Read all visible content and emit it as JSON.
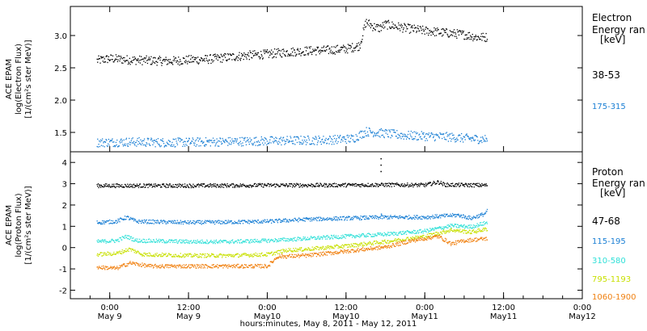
{
  "chart_data": [
    {
      "type": "scatter",
      "panel": "electron",
      "ylabel_lines": [
        "ACE EPAM",
        "log(Electron Flux)",
        "[1/(cm²s ster MeV)]"
      ],
      "ylim": [
        1.2,
        3.45
      ],
      "yticks": [
        1.5,
        2.0,
        2.5,
        3.0
      ],
      "ytick_labels": [
        "1.5",
        "2.0",
        "2.5",
        "3.0"
      ],
      "legend_title": [
        "Electron",
        "Energy ran",
        "[keV]"
      ],
      "series": [
        {
          "name": "38-53",
          "color": "#000000",
          "points": [
            [
              -4,
              2.62
            ],
            [
              0,
              2.65
            ],
            [
              6,
              2.63
            ],
            [
              12,
              2.62
            ],
            [
              18,
              2.61
            ],
            [
              24,
              2.63
            ],
            [
              30,
              2.64
            ],
            [
              36,
              2.67
            ],
            [
              42,
              2.7
            ],
            [
              48,
              2.72
            ],
            [
              54,
              2.75
            ],
            [
              60,
              2.77
            ],
            [
              66,
              2.78
            ],
            [
              72,
              2.8
            ],
            [
              76,
              2.85
            ],
            [
              78,
              3.22
            ],
            [
              80,
              3.15
            ],
            [
              82,
              3.12
            ],
            [
              84,
              3.18
            ],
            [
              90,
              3.12
            ],
            [
              96,
              3.08
            ],
            [
              102,
              3.05
            ],
            [
              108,
              3.02
            ],
            [
              112,
              2.98
            ],
            [
              115,
              2.98
            ]
          ]
        },
        {
          "name": "175-315",
          "color": "#1a7fd4",
          "points": [
            [
              -4,
              1.35
            ],
            [
              6,
              1.36
            ],
            [
              18,
              1.35
            ],
            [
              30,
              1.36
            ],
            [
              42,
              1.37
            ],
            [
              54,
              1.38
            ],
            [
              66,
              1.39
            ],
            [
              74,
              1.41
            ],
            [
              78,
              1.52
            ],
            [
              82,
              1.5
            ],
            [
              90,
              1.46
            ],
            [
              102,
              1.44
            ],
            [
              110,
              1.41
            ],
            [
              115,
              1.4
            ]
          ]
        }
      ]
    },
    {
      "type": "scatter",
      "panel": "proton",
      "ylabel_lines": [
        "ACE EPAM",
        "log(Proton Flux)",
        "[1/(cm²s ster MeV)]"
      ],
      "ylim": [
        -2.4,
        4.5
      ],
      "yticks": [
        -2,
        -1,
        0,
        1,
        2,
        3,
        4
      ],
      "ytick_labels": [
        "-2",
        "-1",
        "0",
        "1",
        "2",
        "3",
        "4"
      ],
      "legend_title": [
        "Proton",
        "Energy ran",
        "[keV]"
      ],
      "series": [
        {
          "name": "47-68",
          "color": "#000000",
          "points": [
            [
              -4,
              2.93
            ],
            [
              12,
              2.93
            ],
            [
              24,
              2.93
            ],
            [
              36,
              2.94
            ],
            [
              48,
              2.95
            ],
            [
              60,
              2.95
            ],
            [
              72,
              2.96
            ],
            [
              84,
              2.97
            ],
            [
              96,
              2.96
            ],
            [
              100,
              3.1
            ],
            [
              102,
              2.97
            ],
            [
              115,
              2.95
            ]
          ]
        },
        {
          "name": "115-195",
          "color": "#1a7fd4",
          "points": [
            [
              -4,
              1.2
            ],
            [
              2,
              1.25
            ],
            [
              5,
              1.45
            ],
            [
              8,
              1.25
            ],
            [
              24,
              1.2
            ],
            [
              36,
              1.22
            ],
            [
              48,
              1.25
            ],
            [
              60,
              1.35
            ],
            [
              72,
              1.4
            ],
            [
              84,
              1.45
            ],
            [
              96,
              1.45
            ],
            [
              106,
              1.55
            ],
            [
              110,
              1.4
            ],
            [
              114,
              1.6
            ],
            [
              115,
              1.75
            ]
          ]
        },
        {
          "name": "310-580",
          "color": "#30e0d8",
          "points": [
            [
              -4,
              0.3
            ],
            [
              2,
              0.35
            ],
            [
              5,
              0.55
            ],
            [
              8,
              0.35
            ],
            [
              24,
              0.3
            ],
            [
              36,
              0.3
            ],
            [
              48,
              0.35
            ],
            [
              60,
              0.45
            ],
            [
              72,
              0.55
            ],
            [
              84,
              0.65
            ],
            [
              96,
              0.8
            ],
            [
              104,
              1.05
            ],
            [
              110,
              1.0
            ],
            [
              115,
              1.2
            ]
          ]
        },
        {
          "name": "795-1193",
          "color": "#c8e000",
          "points": [
            [
              -4,
              -0.3
            ],
            [
              2,
              -0.25
            ],
            [
              6,
              -0.05
            ],
            [
              10,
              -0.3
            ],
            [
              24,
              -0.35
            ],
            [
              36,
              -0.35
            ],
            [
              48,
              -0.3
            ],
            [
              54,
              -0.1
            ],
            [
              60,
              -0.05
            ],
            [
              72,
              0.1
            ],
            [
              84,
              0.3
            ],
            [
              96,
              0.55
            ],
            [
              104,
              0.85
            ],
            [
              110,
              0.75
            ],
            [
              115,
              0.9
            ]
          ]
        },
        {
          "name": "1060-1900",
          "color": "#f08010",
          "points": [
            [
              -4,
              -0.9
            ],
            [
              2,
              -0.95
            ],
            [
              6,
              -0.7
            ],
            [
              12,
              -0.85
            ],
            [
              24,
              -0.85
            ],
            [
              36,
              -0.85
            ],
            [
              48,
              -0.85
            ],
            [
              51,
              -0.4
            ],
            [
              60,
              -0.35
            ],
            [
              72,
              -0.15
            ],
            [
              84,
              0.05
            ],
            [
              92,
              0.35
            ],
            [
              100,
              0.55
            ],
            [
              104,
              0.2
            ],
            [
              108,
              0.35
            ],
            [
              115,
              0.45
            ]
          ]
        }
      ]
    }
  ],
  "xaxis": {
    "range_hours": [
      -12,
      144
    ],
    "ticks": [
      {
        "h": 0,
        "top": "0:00",
        "bottom": "May 9"
      },
      {
        "h": 24,
        "top": "12:00",
        "bottom": "May 9"
      },
      {
        "h": 48,
        "top": "0:00",
        "bottom": "May10"
      },
      {
        "h": 72,
        "top": "12:00",
        "bottom": "May10"
      },
      {
        "h": 96,
        "top": "0:00",
        "bottom": "May11"
      },
      {
        "h": 120,
        "top": "12:00",
        "bottom": "May11"
      },
      {
        "h": 144,
        "top": "0:00",
        "bottom": "May12"
      }
    ],
    "label": "hours:minutes, May  8, 2011 - May 12, 2011"
  }
}
